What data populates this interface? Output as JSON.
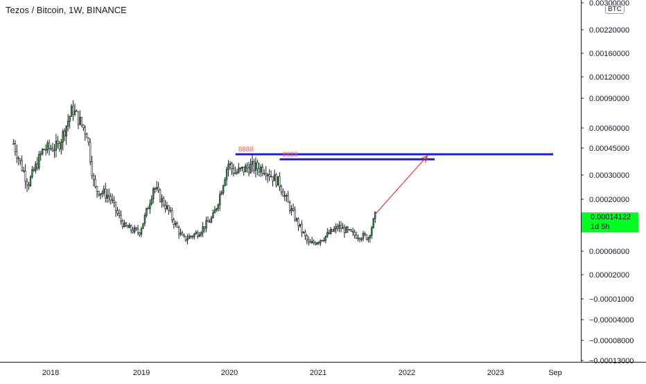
{
  "header": {
    "title": "Tezos / Bitcoin, 1W, BINANCE",
    "unit": "BTC"
  },
  "last_price": {
    "value": "0.00014122",
    "countdown": "1d 5h",
    "color": "#00ff22"
  },
  "colors": {
    "up": "#26a69a",
    "wick": "#131722",
    "up_body": "#3d9b3d",
    "blue_line": "#1c1cd9",
    "arrow": "#e53935",
    "label": "#e55a5a"
  },
  "chart_data": {
    "type": "candlestick",
    "y_scale": "piecewise-log",
    "y_tick_labels": [
      "0.00300000",
      "0.00220000",
      "0.00160000",
      "0.00120000",
      "0.00090000",
      "0.00060000",
      "0.00045000",
      "0.00030000",
      "0.00020000",
      "0.00014122",
      "0.00006000",
      "0.00002000",
      "−0.00001000",
      "−0.00004000",
      "−0.00008000",
      "−0.00013000"
    ],
    "x_tick_labels": [
      "2018",
      "2019",
      "2020",
      "2021",
      "2022",
      "2023",
      "Sep"
    ],
    "series": [
      {
        "x": [
          "2017-08",
          "2017-10",
          "2017-12",
          "2018-02",
          "2018-04",
          "2018-06",
          "2018-07",
          "2018-09",
          "2018-11",
          "2019-01",
          "2019-03",
          "2019-05",
          "2019-07",
          "2019-09",
          "2019-11",
          "2020-01",
          "2020-02",
          "2020-04",
          "2020-06",
          "2020-08",
          "2020-10",
          "2020-12",
          "2021-02",
          "2021-04",
          "2021-06",
          "2021-08",
          "2021-09"
        ],
        "close": [
          0.00048,
          0.00026,
          0.00044,
          0.00046,
          0.00078,
          0.00055,
          0.00024,
          0.00021,
          0.00011,
          9.5e-05,
          0.00025,
          0.00016,
          8e-05,
          9.5e-05,
          0.00014,
          0.00036,
          0.00031,
          0.00034,
          0.00033,
          0.00026,
          0.00014,
          7e-05,
          8.5e-05,
          0.00011,
          9e-05,
          8.5e-05,
          0.00015
        ]
      }
    ],
    "annotations": [
      {
        "type": "horizontal-line",
        "label": "8888",
        "from": "2020-02",
        "to": "2023-09",
        "y": 0.00041
      },
      {
        "type": "horizontal-line",
        "label": "8888",
        "from": "2020-08",
        "to": "2022-05",
        "y": 0.00038
      },
      {
        "type": "arrow",
        "from": {
          "x": "2021-09",
          "y": 0.00015
        },
        "to": {
          "x": "2022-04",
          "y": 0.0004
        }
      }
    ]
  }
}
